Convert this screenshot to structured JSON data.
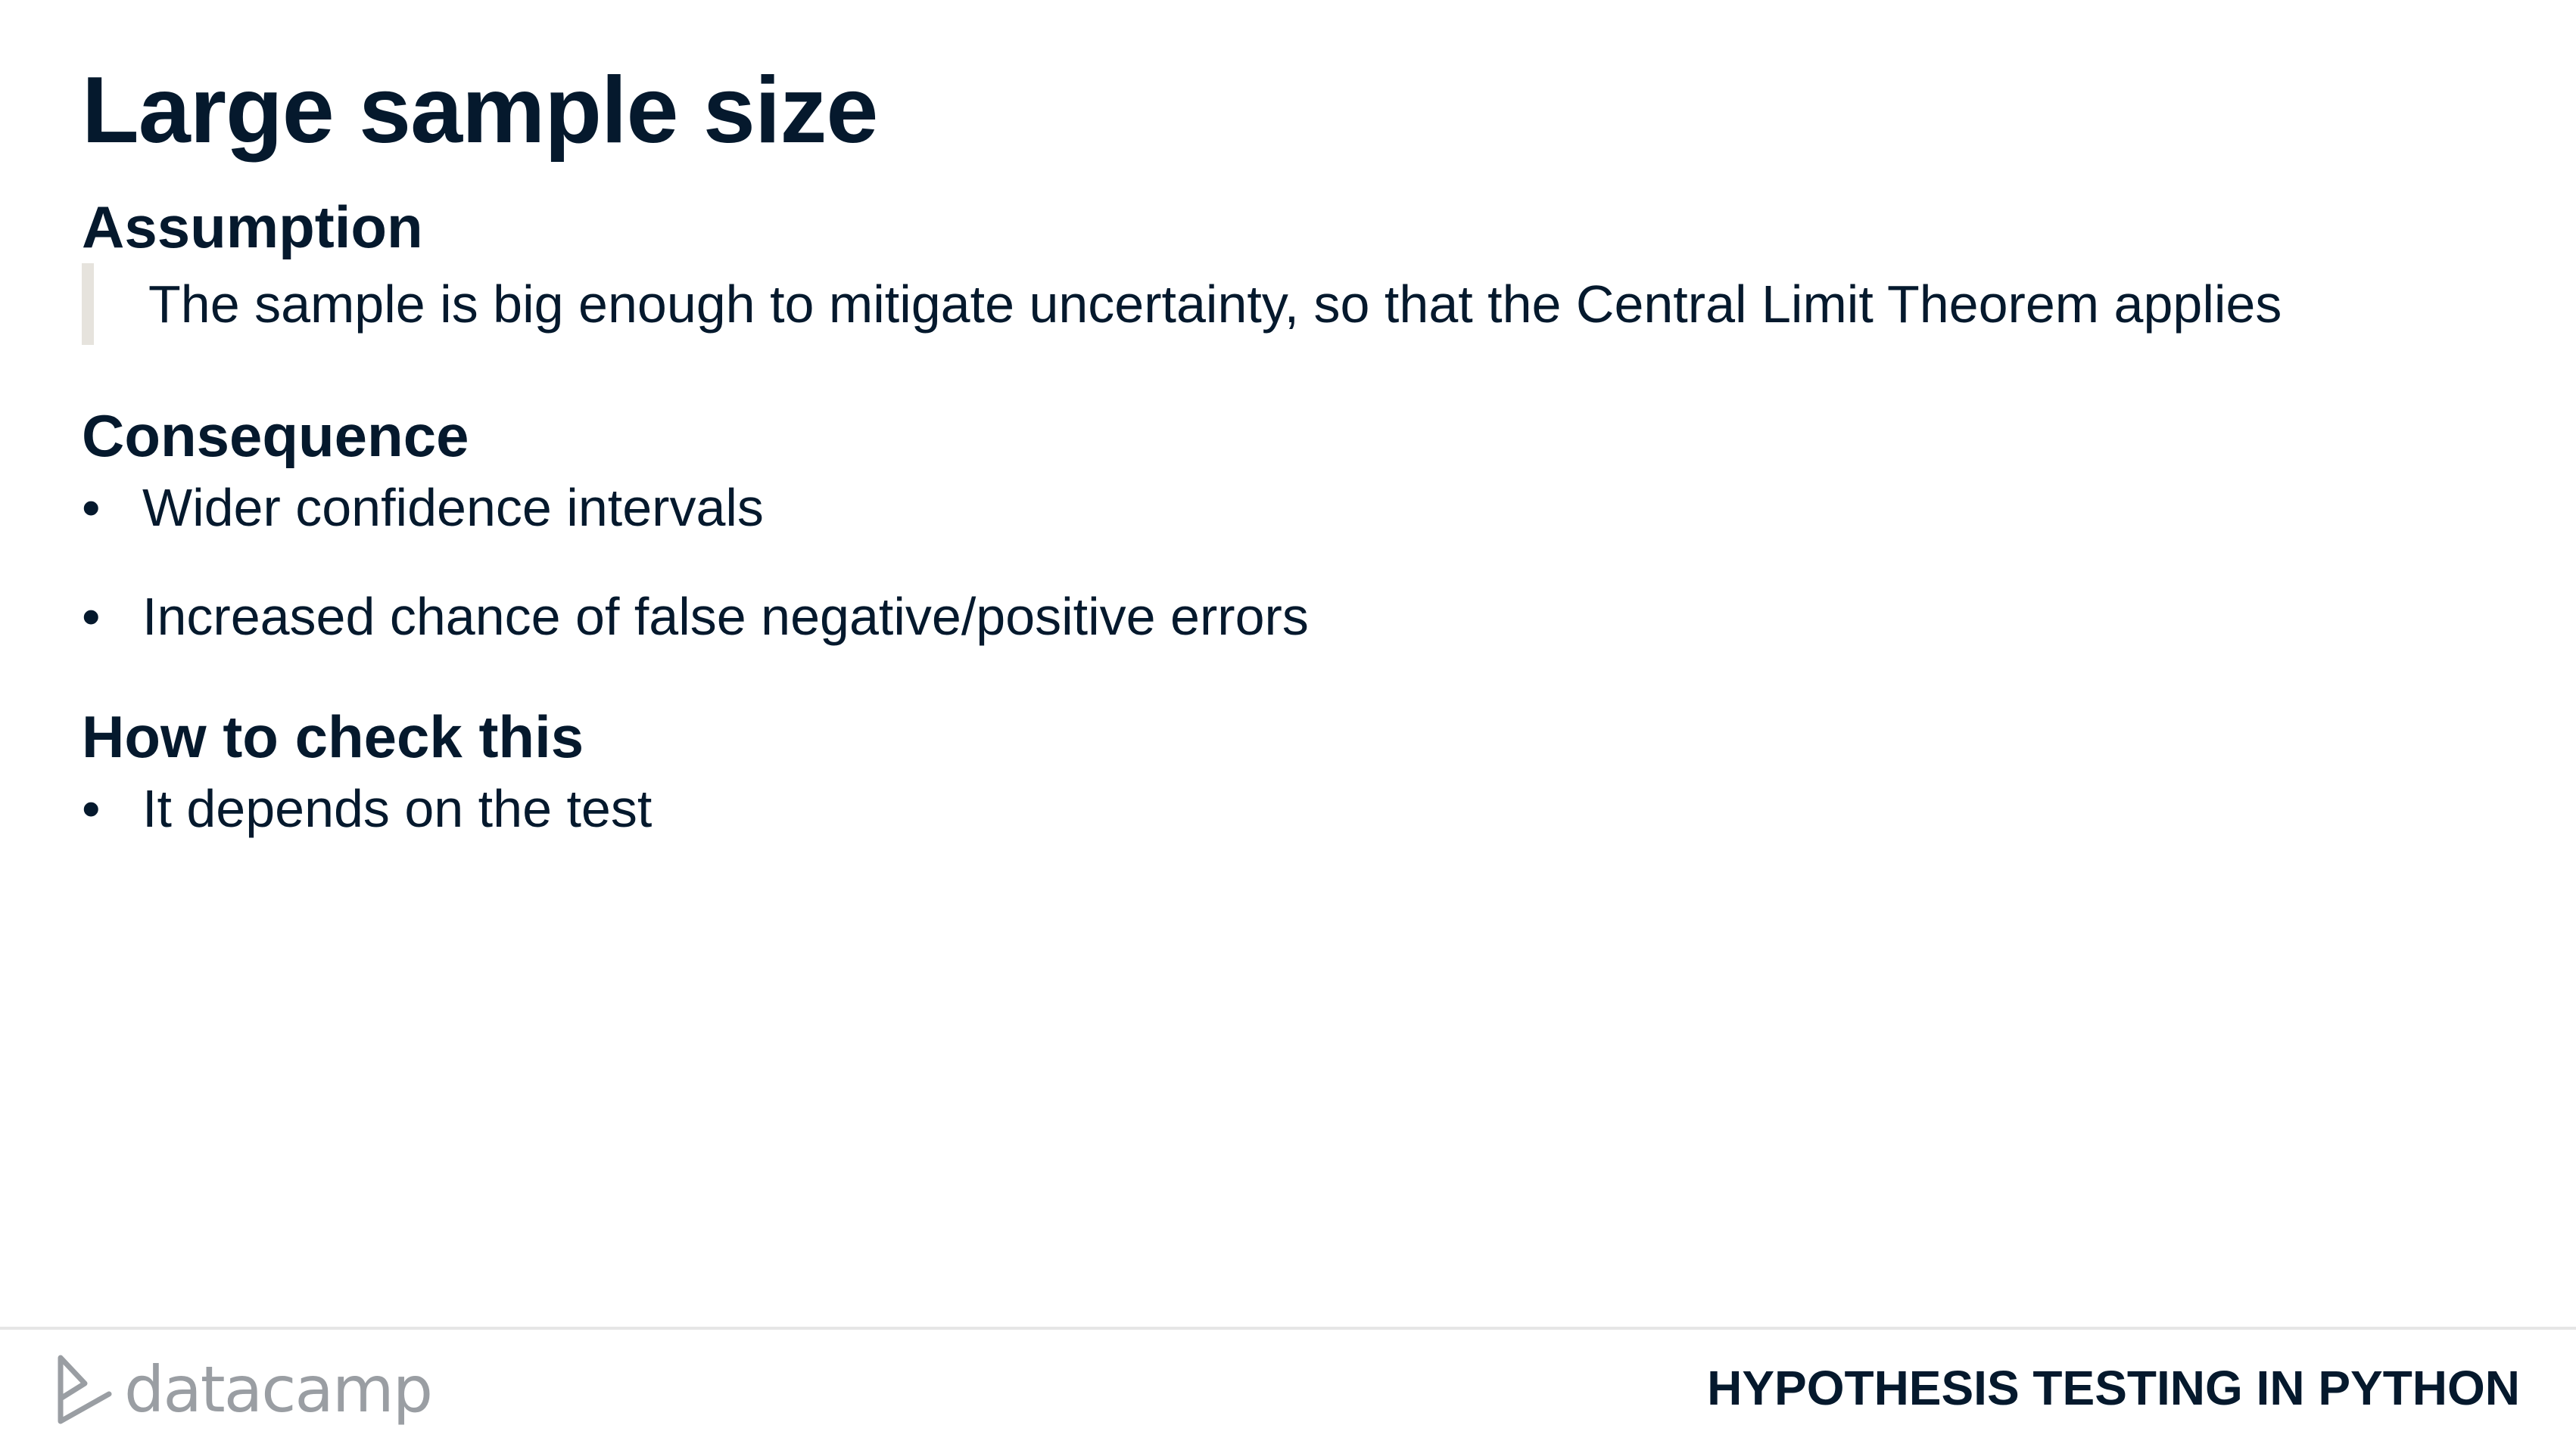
{
  "title": "Large sample size",
  "assumption": {
    "heading": "Assumption",
    "text": "The sample is big enough to mitigate uncertainty, so that the Central Limit Theorem applies"
  },
  "consequence": {
    "heading": "Consequence",
    "items": [
      "Wider confidence intervals",
      "Increased chance of false negative/positive errors"
    ]
  },
  "check": {
    "heading": "How to check this",
    "items": [
      "It depends on the test"
    ]
  },
  "bullet_symbol": "•",
  "footer": {
    "brand": "datacamp",
    "course": "HYPOTHESIS TESTING IN PYTHON"
  },
  "colors": {
    "text": "#05192d",
    "quote_bar": "#e6e3dd",
    "logo": "#9a9ea3"
  }
}
